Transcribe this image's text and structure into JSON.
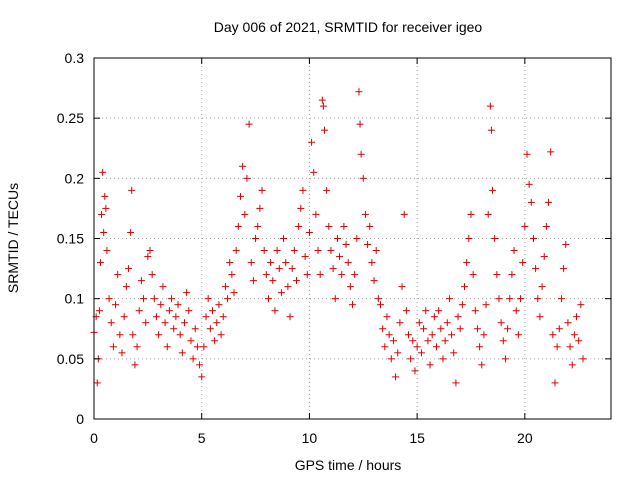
{
  "chart_data": {
    "type": "scatter",
    "title": "Day 006 of 2021, SRMTID for receiver igeo",
    "xlabel": "GPS time / hours",
    "ylabel": "SRMTID / TECUs",
    "xlim": [
      0,
      24
    ],
    "ylim": [
      0,
      0.3
    ],
    "x_ticks": [
      0,
      5,
      10,
      15,
      20
    ],
    "x_tick_labels": [
      "0",
      "5",
      "10",
      "15",
      "20"
    ],
    "y_ticks": [
      0,
      0.05,
      0.1,
      0.15,
      0.2,
      0.25,
      0.3
    ],
    "y_tick_labels": [
      "0",
      "0.05",
      "0.1",
      "0.15",
      "0.2",
      "0.25",
      "0.3"
    ],
    "grid": true,
    "marker": "plus",
    "color": "#e00000",
    "series": [
      {
        "name": "SRMTID",
        "points": [
          [
            0.0,
            0.072
          ],
          [
            0.1,
            0.085
          ],
          [
            0.15,
            0.03
          ],
          [
            0.2,
            0.05
          ],
          [
            0.25,
            0.09
          ],
          [
            0.3,
            0.13
          ],
          [
            0.35,
            0.17
          ],
          [
            0.4,
            0.205
          ],
          [
            0.45,
            0.155
          ],
          [
            0.5,
            0.185
          ],
          [
            0.55,
            0.175
          ],
          [
            0.6,
            0.14
          ],
          [
            0.7,
            0.1
          ],
          [
            0.8,
            0.08
          ],
          [
            0.9,
            0.06
          ],
          [
            1.0,
            0.095
          ],
          [
            1.1,
            0.12
          ],
          [
            1.2,
            0.07
          ],
          [
            1.3,
            0.055
          ],
          [
            1.4,
            0.085
          ],
          [
            1.5,
            0.11
          ],
          [
            1.6,
            0.125
          ],
          [
            1.7,
            0.155
          ],
          [
            1.75,
            0.19
          ],
          [
            1.8,
            0.07
          ],
          [
            1.9,
            0.045
          ],
          [
            2.0,
            0.06
          ],
          [
            2.1,
            0.09
          ],
          [
            2.2,
            0.115
          ],
          [
            2.3,
            0.1
          ],
          [
            2.4,
            0.08
          ],
          [
            2.5,
            0.135
          ],
          [
            2.6,
            0.14
          ],
          [
            2.7,
            0.12
          ],
          [
            2.8,
            0.1
          ],
          [
            2.9,
            0.085
          ],
          [
            3.0,
            0.07
          ],
          [
            3.1,
            0.095
          ],
          [
            3.2,
            0.11
          ],
          [
            3.3,
            0.08
          ],
          [
            3.4,
            0.06
          ],
          [
            3.5,
            0.09
          ],
          [
            3.6,
            0.1
          ],
          [
            3.7,
            0.075
          ],
          [
            3.8,
            0.085
          ],
          [
            3.9,
            0.095
          ],
          [
            4.0,
            0.07
          ],
          [
            4.1,
            0.055
          ],
          [
            4.2,
            0.08
          ],
          [
            4.3,
            0.105
          ],
          [
            4.4,
            0.09
          ],
          [
            4.5,
            0.065
          ],
          [
            4.6,
            0.05
          ],
          [
            4.7,
            0.075
          ],
          [
            4.8,
            0.06
          ],
          [
            4.9,
            0.045
          ],
          [
            5.0,
            0.035
          ],
          [
            5.1,
            0.06
          ],
          [
            5.2,
            0.085
          ],
          [
            5.3,
            0.1
          ],
          [
            5.4,
            0.075
          ],
          [
            5.5,
            0.09
          ],
          [
            5.6,
            0.065
          ],
          [
            5.7,
            0.08
          ],
          [
            5.8,
            0.095
          ],
          [
            5.9,
            0.07
          ],
          [
            6.0,
            0.085
          ],
          [
            6.1,
            0.11
          ],
          [
            6.2,
            0.1
          ],
          [
            6.3,
            0.13
          ],
          [
            6.4,
            0.12
          ],
          [
            6.5,
            0.105
          ],
          [
            6.6,
            0.14
          ],
          [
            6.7,
            0.16
          ],
          [
            6.8,
            0.185
          ],
          [
            6.9,
            0.21
          ],
          [
            7.0,
            0.17
          ],
          [
            7.1,
            0.2
          ],
          [
            7.2,
            0.245
          ],
          [
            7.3,
            0.13
          ],
          [
            7.4,
            0.115
          ],
          [
            7.5,
            0.15
          ],
          [
            7.6,
            0.16
          ],
          [
            7.7,
            0.175
          ],
          [
            7.8,
            0.19
          ],
          [
            7.9,
            0.14
          ],
          [
            8.0,
            0.12
          ],
          [
            8.1,
            0.1
          ],
          [
            8.2,
            0.13
          ],
          [
            8.3,
            0.115
          ],
          [
            8.4,
            0.09
          ],
          [
            8.5,
            0.14
          ],
          [
            8.6,
            0.125
          ],
          [
            8.7,
            0.105
          ],
          [
            8.8,
            0.15
          ],
          [
            8.9,
            0.13
          ],
          [
            9.0,
            0.11
          ],
          [
            9.1,
            0.085
          ],
          [
            9.2,
            0.125
          ],
          [
            9.3,
            0.14
          ],
          [
            9.4,
            0.115
          ],
          [
            9.5,
            0.16
          ],
          [
            9.6,
            0.175
          ],
          [
            9.7,
            0.19
          ],
          [
            9.8,
            0.135
          ],
          [
            9.9,
            0.12
          ],
          [
            10.0,
            0.155
          ],
          [
            10.1,
            0.23
          ],
          [
            10.2,
            0.205
          ],
          [
            10.3,
            0.17
          ],
          [
            10.4,
            0.14
          ],
          [
            10.5,
            0.12
          ],
          [
            10.6,
            0.265
          ],
          [
            10.65,
            0.26
          ],
          [
            10.7,
            0.24
          ],
          [
            10.8,
            0.19
          ],
          [
            10.9,
            0.16
          ],
          [
            11.0,
            0.14
          ],
          [
            11.1,
            0.125
          ],
          [
            11.2,
            0.1
          ],
          [
            11.3,
            0.15
          ],
          [
            11.4,
            0.135
          ],
          [
            11.5,
            0.12
          ],
          [
            11.6,
            0.16
          ],
          [
            11.7,
            0.145
          ],
          [
            11.8,
            0.13
          ],
          [
            11.9,
            0.11
          ],
          [
            12.0,
            0.095
          ],
          [
            12.1,
            0.12
          ],
          [
            12.2,
            0.15
          ],
          [
            12.3,
            0.272
          ],
          [
            12.35,
            0.245
          ],
          [
            12.4,
            0.22
          ],
          [
            12.5,
            0.2
          ],
          [
            12.6,
            0.17
          ],
          [
            12.7,
            0.145
          ],
          [
            12.8,
            0.16
          ],
          [
            12.9,
            0.13
          ],
          [
            13.0,
            0.115
          ],
          [
            13.1,
            0.14
          ],
          [
            13.2,
            0.1
          ],
          [
            13.3,
            0.095
          ],
          [
            13.4,
            0.075
          ],
          [
            13.5,
            0.06
          ],
          [
            13.6,
            0.085
          ],
          [
            13.7,
            0.07
          ],
          [
            13.8,
            0.05
          ],
          [
            13.9,
            0.065
          ],
          [
            14.0,
            0.035
          ],
          [
            14.1,
            0.055
          ],
          [
            14.2,
            0.08
          ],
          [
            14.3,
            0.11
          ],
          [
            14.4,
            0.17
          ],
          [
            14.5,
            0.09
          ],
          [
            14.6,
            0.07
          ],
          [
            14.7,
            0.05
          ],
          [
            14.8,
            0.065
          ],
          [
            14.9,
            0.04
          ],
          [
            15.0,
            0.06
          ],
          [
            15.1,
            0.08
          ],
          [
            15.2,
            0.055
          ],
          [
            15.3,
            0.075
          ],
          [
            15.4,
            0.09
          ],
          [
            15.5,
            0.065
          ],
          [
            15.6,
            0.045
          ],
          [
            15.7,
            0.07
          ],
          [
            15.8,
            0.085
          ],
          [
            15.9,
            0.06
          ],
          [
            16.0,
            0.09
          ],
          [
            16.1,
            0.075
          ],
          [
            16.2,
            0.05
          ],
          [
            16.3,
            0.065
          ],
          [
            16.4,
            0.08
          ],
          [
            16.5,
            0.1
          ],
          [
            16.6,
            0.07
          ],
          [
            16.7,
            0.055
          ],
          [
            16.8,
            0.03
          ],
          [
            16.9,
            0.085
          ],
          [
            17.0,
            0.075
          ],
          [
            17.1,
            0.095
          ],
          [
            17.2,
            0.11
          ],
          [
            17.3,
            0.13
          ],
          [
            17.4,
            0.15
          ],
          [
            17.5,
            0.17
          ],
          [
            17.6,
            0.12
          ],
          [
            17.7,
            0.09
          ],
          [
            17.8,
            0.075
          ],
          [
            17.9,
            0.06
          ],
          [
            18.0,
            0.045
          ],
          [
            18.1,
            0.07
          ],
          [
            18.2,
            0.095
          ],
          [
            18.3,
            0.17
          ],
          [
            18.4,
            0.26
          ],
          [
            18.45,
            0.24
          ],
          [
            18.5,
            0.19
          ],
          [
            18.6,
            0.15
          ],
          [
            18.7,
            0.12
          ],
          [
            18.8,
            0.1
          ],
          [
            18.9,
            0.08
          ],
          [
            19.0,
            0.065
          ],
          [
            19.1,
            0.05
          ],
          [
            19.2,
            0.075
          ],
          [
            19.3,
            0.1
          ],
          [
            19.4,
            0.12
          ],
          [
            19.5,
            0.14
          ],
          [
            19.6,
            0.09
          ],
          [
            19.7,
            0.07
          ],
          [
            19.8,
            0.1
          ],
          [
            19.9,
            0.13
          ],
          [
            20.0,
            0.16
          ],
          [
            20.1,
            0.22
          ],
          [
            20.2,
            0.195
          ],
          [
            20.3,
            0.18
          ],
          [
            20.4,
            0.15
          ],
          [
            20.5,
            0.125
          ],
          [
            20.6,
            0.1
          ],
          [
            20.7,
            0.085
          ],
          [
            20.8,
            0.11
          ],
          [
            20.9,
            0.135
          ],
          [
            21.0,
            0.16
          ],
          [
            21.1,
            0.18
          ],
          [
            21.2,
            0.222
          ],
          [
            21.3,
            0.07
          ],
          [
            21.4,
            0.03
          ],
          [
            21.5,
            0.06
          ],
          [
            21.6,
            0.075
          ],
          [
            21.7,
            0.1
          ],
          [
            21.8,
            0.125
          ],
          [
            21.9,
            0.145
          ],
          [
            22.0,
            0.08
          ],
          [
            22.1,
            0.06
          ],
          [
            22.2,
            0.045
          ],
          [
            22.3,
            0.07
          ],
          [
            22.4,
            0.085
          ],
          [
            22.5,
            0.065
          ],
          [
            22.6,
            0.095
          ],
          [
            22.7,
            0.05
          ]
        ]
      }
    ]
  }
}
